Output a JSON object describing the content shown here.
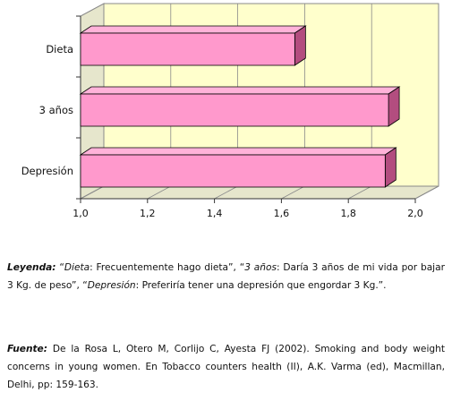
{
  "chart_data": {
    "type": "bar",
    "orientation": "horizontal",
    "style": "3d",
    "categories": [
      "Dieta",
      "3 años",
      "Depresión"
    ],
    "values": [
      1.64,
      1.92,
      1.91
    ],
    "xlim": [
      1.0,
      2.0
    ],
    "ticks": [
      "1,0",
      "1,2",
      "1,4",
      "1,6",
      "1,8",
      "2,0"
    ],
    "tick_values": [
      1.0,
      1.2,
      1.4,
      1.6,
      1.8,
      2.0
    ],
    "grid": true,
    "bar_color": "#ff99cc",
    "bar_top_color": "#ffb3d9",
    "bar_side_color": "#b34d7f",
    "wall_color": "#ffffcc",
    "floor_color": "#e6e6cc",
    "grid_color": "#8a8a8a"
  },
  "legend": {
    "label": "Leyenda:",
    "items": [
      {
        "term": "Dieta",
        "text": ": Frecuentemente hago dieta”, “"
      },
      {
        "term": "3 años",
        "text": ": Daría 3 años de mi vida por bajar 3 Kg. de peso”, “"
      },
      {
        "term": "Depresión",
        "text": ": Preferiría tener una depresión que engordar 3 Kg.”."
      }
    ],
    "open_quote": "“"
  },
  "source": {
    "label": "Fuente:",
    "text": " De la Rosa L, Otero M, Corlijo C, Ayesta FJ (2002). Smoking and body weight concerns in young women. En Tobacco counters health (II), A.K. Varma (ed), Macmillan, Delhi, pp: 159-163."
  }
}
